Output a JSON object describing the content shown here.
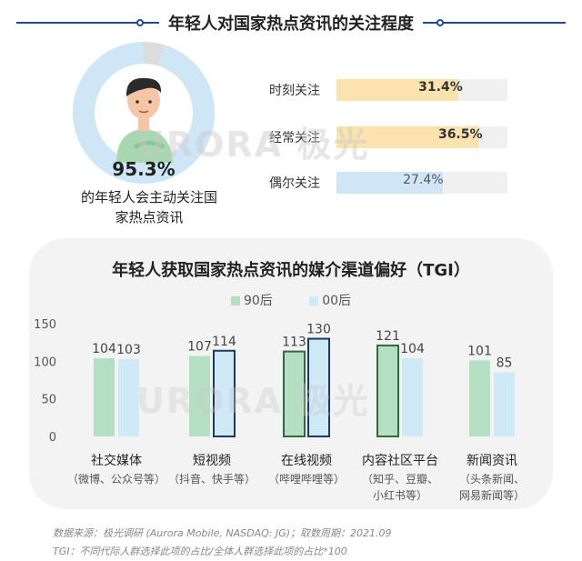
{
  "top": {
    "title": "年轻人对国家热点资讯的关注程度",
    "donut_percent": "95.3%",
    "donut_value": 95.3,
    "donut_desc_line1": "的年轻人会主动关注国",
    "donut_desc_line2": "家热点资讯",
    "donut_color": "#cfe6f7",
    "donut_rest_color": "#dcdcdc"
  },
  "frequency": [
    {
      "label": "时刻关注",
      "value_text": "31.4%",
      "value": 31.4,
      "color": "#fbe3b0"
    },
    {
      "label": "经常关注",
      "value_text": "36.5%",
      "value": 36.5,
      "color": "#fbe3b0"
    },
    {
      "label": "偶尔关注",
      "value_text": "27.4%",
      "value": 27.4,
      "color": "#cfe6f7"
    }
  ],
  "watermark": "URORA 极光",
  "chart_data": {
    "type": "bar",
    "title": "年轻人获取国家热点资讯的媒介渠道偏好（TGI）",
    "categories": [
      "社交媒体",
      "短视频",
      "在线视频",
      "内容社区平台",
      "新闻资讯"
    ],
    "category_subs": [
      [
        "（微博、公众号等）"
      ],
      [
        "（抖音、快手等）"
      ],
      [
        "（哔哩哔哩等）"
      ],
      [
        "（知乎、豆瓣、",
        "小红书等）"
      ],
      [
        "（头条新闻、",
        "网易新闻等）"
      ]
    ],
    "series": [
      {
        "name": "90后",
        "values": [
          104,
          107,
          113,
          121,
          101
        ],
        "color": "#b5dfc2"
      },
      {
        "name": "00后",
        "values": [
          103,
          114,
          130,
          104,
          85
        ],
        "color": "#cfe9f7"
      }
    ],
    "highlighted": [
      [
        2,
        0
      ],
      [
        1,
        1
      ],
      [
        2,
        1
      ],
      [
        3,
        0
      ]
    ],
    "yticks": [
      0,
      50,
      100,
      150
    ],
    "ylim": [
      0,
      150
    ],
    "grid": false,
    "legend": "top"
  },
  "notes": [
    "数据来源：极光调研 (Aurora Mobile, NASDAQ: JG)；取数周期：2021.09",
    "TGI：不同代际人群选择此项的占比/全体人群选择此项的占比*100"
  ]
}
